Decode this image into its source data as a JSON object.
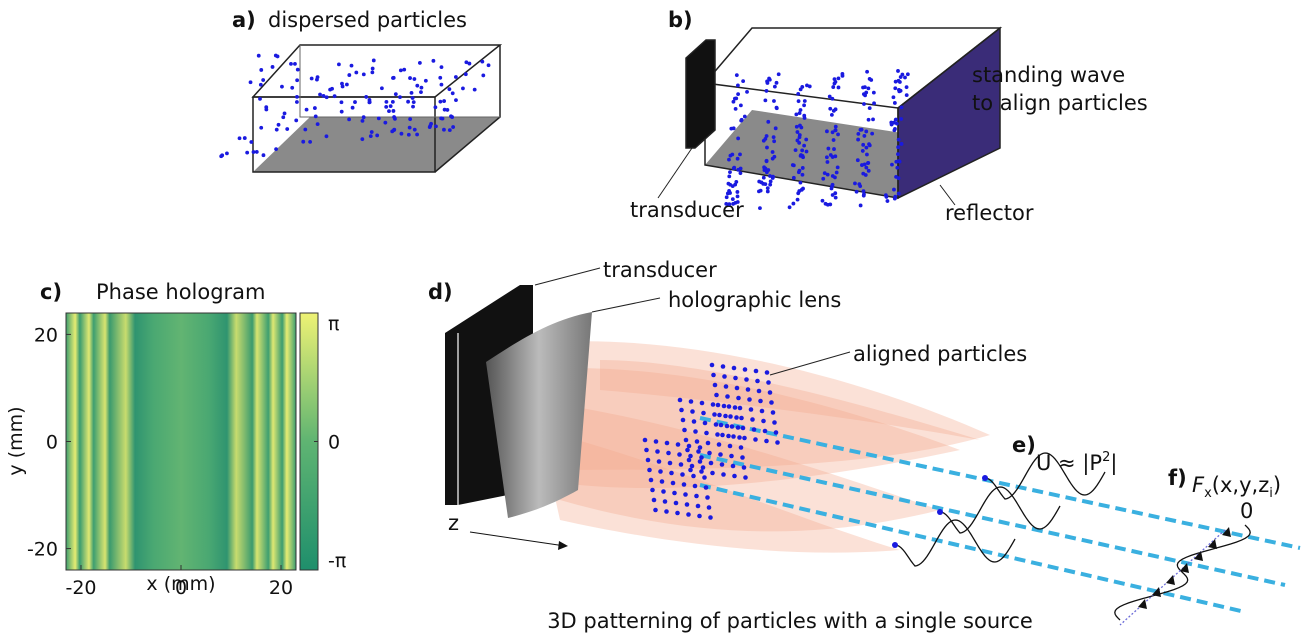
{
  "panels": {
    "a": {
      "label": "a)",
      "title": "dispersed particles"
    },
    "b": {
      "label": "b)",
      "note": [
        "standing wave",
        "to align particles"
      ],
      "transducer": "transducer",
      "reflector": "reflector"
    },
    "c": {
      "label": "c)",
      "title": "Phase hologram",
      "xlabel": "x (mm)",
      "ylabel": "y (mm)",
      "xlim": [
        -23,
        23
      ],
      "ylim": [
        -24,
        24
      ],
      "xticks": [
        -20,
        0,
        20
      ],
      "yticks": [
        -20,
        0,
        20
      ],
      "colorbar": {
        "lim": [
          -3.1416,
          3.1416
        ],
        "ticks": [
          {
            "value": -3.1416,
            "label": "-π"
          },
          0,
          {
            "value": 3.1416,
            "label": "π"
          }
        ]
      }
    },
    "d": {
      "label": "d)",
      "transducer": "transducer",
      "lens": "holographic lens",
      "particles": "aligned particles",
      "axis": "z"
    },
    "e": {
      "label": "e)",
      "formula": [
        "U ≈ |P",
        "2",
        "|"
      ]
    },
    "f": {
      "label": "f)",
      "formula": [
        "F",
        "x",
        "(x,y,z",
        "i",
        ")"
      ],
      "zero": "0"
    }
  },
  "caption": "3D patterning of particles with a single source"
}
